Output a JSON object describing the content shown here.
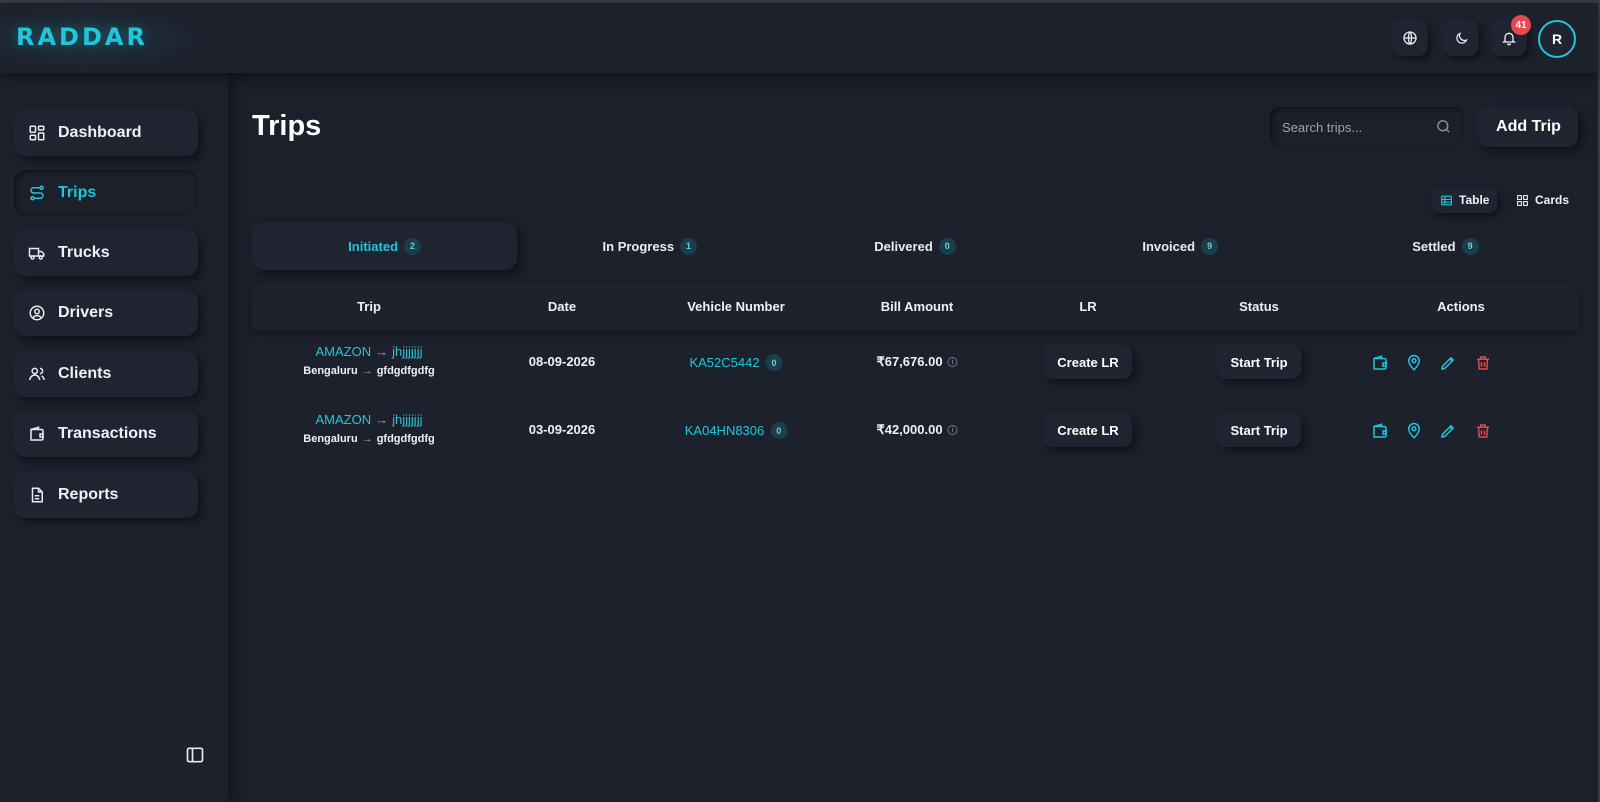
{
  "app": {
    "logo": "RADDAR",
    "accent": "#22c6dc",
    "danger": "#e5484d"
  },
  "header": {
    "notifications_count": "41",
    "avatar_initial": "R",
    "icons": [
      "globe-icon",
      "moon-icon",
      "bell-icon"
    ]
  },
  "sidebar": {
    "items": [
      {
        "label": "Dashboard",
        "icon": "dashboard-icon",
        "active": false
      },
      {
        "label": "Trips",
        "icon": "route-icon",
        "active": true
      },
      {
        "label": "Trucks",
        "icon": "truck-icon",
        "active": false
      },
      {
        "label": "Drivers",
        "icon": "user-circle-icon",
        "active": false
      },
      {
        "label": "Clients",
        "icon": "users-icon",
        "active": false
      },
      {
        "label": "Transactions",
        "icon": "wallet-icon",
        "active": false
      },
      {
        "label": "Reports",
        "icon": "document-icon",
        "active": false
      }
    ]
  },
  "main": {
    "title": "Trips",
    "search_placeholder": "Search trips...",
    "add_button": "Add Trip",
    "view_toggles": [
      {
        "label": "Table",
        "active": true
      },
      {
        "label": "Cards",
        "active": false
      }
    ],
    "tabs": [
      {
        "label": "Initiated",
        "count": "2",
        "active": true
      },
      {
        "label": "In Progress",
        "count": "1",
        "active": false
      },
      {
        "label": "Delivered",
        "count": "0",
        "active": false
      },
      {
        "label": "Invoiced",
        "count": "9",
        "active": false
      },
      {
        "label": "Settled",
        "count": "9",
        "active": false
      }
    ],
    "columns": [
      "Trip",
      "Date",
      "Vehicle Number",
      "Bill Amount",
      "LR",
      "Status",
      "Actions"
    ],
    "rows": [
      {
        "client": "AMAZON",
        "consignee": "jhjjjjjjj",
        "from": "Bengaluru",
        "to": "gfdgdfgdfg",
        "date": "08-09-2026",
        "vehicle": "KA52C5442",
        "vehicle_count": "0",
        "bill": "₹67,676.00",
        "lr_action": "Create LR",
        "status_action": "Start Trip"
      },
      {
        "client": "AMAZON",
        "consignee": "jhjjjjjjj",
        "from": "Bengaluru",
        "to": "gfdgdfgdfg",
        "date": "03-09-2026",
        "vehicle": "KA04HN8306",
        "vehicle_count": "0",
        "bill": "₹42,000.00",
        "lr_action": "Create LR",
        "status_action": "Start Trip"
      }
    ],
    "row_action_icons": [
      "wallet-icon",
      "location-pin-icon",
      "pencil-icon",
      "trash-icon"
    ]
  }
}
